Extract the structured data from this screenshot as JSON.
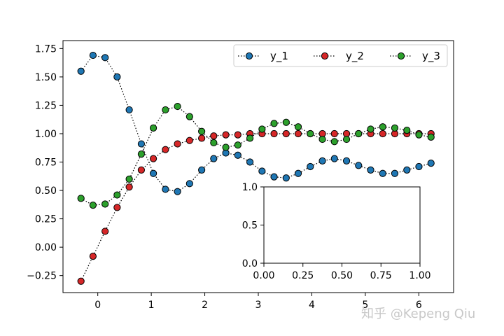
{
  "chart_data": [
    {
      "type": "line",
      "markers": true,
      "line_style": "dotted",
      "xlim": [
        -0.65,
        6.65
      ],
      "ylim": [
        -0.4,
        1.82
      ],
      "x_ticks": [
        0,
        1,
        2,
        3,
        4,
        5,
        6
      ],
      "y_ticks": [
        -0.25,
        0.0,
        0.25,
        0.5,
        0.75,
        1.0,
        1.25,
        1.5,
        1.75
      ],
      "x_tick_labels": [
        "0",
        "1",
        "2",
        "3",
        "4",
        "5",
        "6"
      ],
      "y_tick_labels": [
        "−0.25",
        "0.00",
        "0.25",
        "0.50",
        "0.75",
        "1.00",
        "1.25",
        "1.50",
        "1.75"
      ],
      "grid": false,
      "legend": "top-right",
      "legend_columns": 3,
      "x": [
        -0.314,
        -0.089,
        0.137,
        0.362,
        0.588,
        0.814,
        1.039,
        1.265,
        1.49,
        1.716,
        1.942,
        2.167,
        2.393,
        2.618,
        2.844,
        3.07,
        3.295,
        3.521,
        3.746,
        3.972,
        4.198,
        4.423,
        4.649,
        4.874,
        5.1,
        5.326,
        5.551,
        5.777,
        6.002,
        6.228
      ],
      "series": [
        {
          "name": "y_1",
          "color": "#1f77b4",
          "values": [
            1.55,
            1.69,
            1.67,
            1.5,
            1.21,
            0.91,
            0.65,
            0.51,
            0.49,
            0.56,
            0.68,
            0.78,
            0.83,
            0.81,
            0.75,
            0.67,
            0.62,
            0.61,
            0.65,
            0.71,
            0.76,
            0.78,
            0.76,
            0.72,
            0.68,
            0.65,
            0.65,
            0.68,
            0.71,
            0.74
          ]
        },
        {
          "name": "y_2",
          "color": "#d62728",
          "values": [
            -0.3,
            -0.08,
            0.14,
            0.35,
            0.53,
            0.68,
            0.78,
            0.86,
            0.91,
            0.94,
            0.96,
            0.98,
            0.99,
            0.99,
            1.0,
            1.0,
            1.0,
            1.0,
            1.0,
            1.0,
            1.0,
            1.0,
            1.0,
            1.0,
            1.0,
            1.0,
            1.0,
            1.0,
            1.0,
            1.0
          ]
        },
        {
          "name": "y_3",
          "color": "#2ca02c",
          "values": [
            0.43,
            0.37,
            0.38,
            0.46,
            0.6,
            0.82,
            1.05,
            1.21,
            1.24,
            1.15,
            1.02,
            0.92,
            0.88,
            0.9,
            0.96,
            1.04,
            1.09,
            1.1,
            1.06,
            1.0,
            0.95,
            0.93,
            0.95,
            1.0,
            1.04,
            1.06,
            1.05,
            1.03,
            0.99,
            0.97
          ]
        }
      ]
    },
    {
      "type": "line",
      "inset": true,
      "xlim": [
        0,
        1
      ],
      "ylim": [
        0,
        1
      ],
      "x_ticks": [
        0,
        0.25,
        0.5,
        0.75,
        1.0
      ],
      "y_ticks": [
        0,
        0.5,
        1.0
      ],
      "x_tick_labels": [
        "0.00",
        "0.25",
        "0.50",
        "0.75",
        "1.00"
      ],
      "y_tick_labels": [
        "0.0",
        "0.5",
        "1.0"
      ],
      "series": []
    }
  ],
  "watermark": "知乎 @Kepeng Qiu"
}
